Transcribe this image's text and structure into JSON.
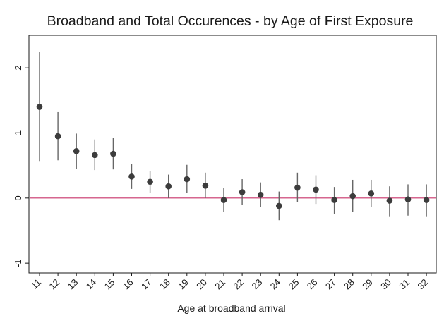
{
  "chart_data": {
    "type": "scatter",
    "title": "Broadband and Total Occurences - by Age of First Exposure",
    "xlabel": "Age at broadband arrival",
    "ylabel": "",
    "ylim": [
      -1.15,
      2.5
    ],
    "yticks": [
      -1,
      0,
      1,
      2
    ],
    "reference_line": {
      "y": 0,
      "color": "#c8346a"
    },
    "grid": false,
    "legend": "none",
    "colors": {
      "marker": "#3c3c3c",
      "ci": "#666666",
      "axis": "#1a1a1a"
    },
    "categories": [
      "11",
      "12",
      "13",
      "14",
      "15",
      "16",
      "17",
      "18",
      "19",
      "20",
      "21",
      "22",
      "23",
      "24",
      "25",
      "26",
      "27",
      "28",
      "29",
      "30",
      "31",
      "32"
    ],
    "series": [
      {
        "estimate": [
          1.4,
          0.95,
          0.72,
          0.66,
          0.68,
          0.33,
          0.25,
          0.18,
          0.29,
          0.19,
          -0.03,
          0.09,
          0.05,
          -0.12,
          0.16,
          0.13,
          -0.03,
          0.03,
          0.07,
          -0.04,
          -0.02,
          -0.03
        ],
        "ci_low": [
          0.57,
          0.58,
          0.45,
          0.43,
          0.44,
          0.14,
          0.08,
          0.0,
          0.08,
          0.0,
          -0.21,
          -0.1,
          -0.14,
          -0.34,
          -0.06,
          -0.09,
          -0.24,
          -0.21,
          -0.14,
          -0.28,
          -0.27,
          -0.28
        ],
        "ci_high": [
          2.24,
          1.32,
          0.99,
          0.9,
          0.92,
          0.52,
          0.42,
          0.36,
          0.51,
          0.39,
          0.15,
          0.29,
          0.24,
          0.1,
          0.39,
          0.35,
          0.17,
          0.28,
          0.28,
          0.18,
          0.21,
          0.21
        ]
      }
    ]
  }
}
